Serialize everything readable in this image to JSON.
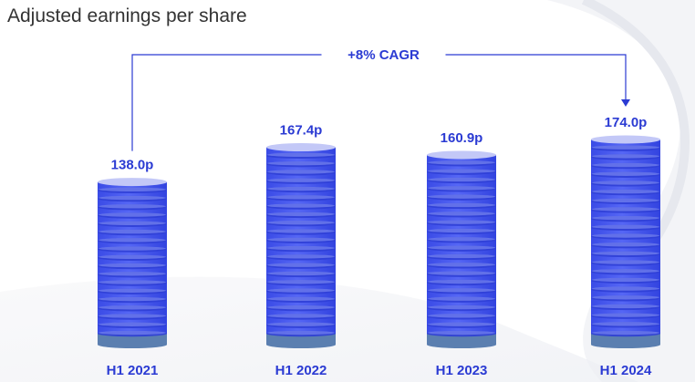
{
  "title": "Adjusted earnings per share",
  "colors": {
    "disc": "#4a5bf0",
    "disc_dark": "#2f3fd6",
    "disc_light": "#8b97f5",
    "base": "#5b7fb0",
    "top": "#c3c8f7",
    "label": "#2b3bd3",
    "line": "#2b3bd3",
    "title": "#333333"
  },
  "chart_data": {
    "type": "bar",
    "title": "Adjusted earnings per share",
    "categories": [
      "H1 2021",
      "H1 2022",
      "H1 2023",
      "H1 2024"
    ],
    "values": [
      138.0,
      167.4,
      160.9,
      174.0
    ],
    "value_labels": [
      "138.0p",
      "167.4p",
      "160.9p",
      "174.0p"
    ],
    "unit": "p",
    "annotation": {
      "text": "+8% CAGR",
      "from": "H1 2021",
      "to": "H1 2024"
    },
    "xlabel": "",
    "ylabel": "",
    "grid": false,
    "legend": "none"
  }
}
